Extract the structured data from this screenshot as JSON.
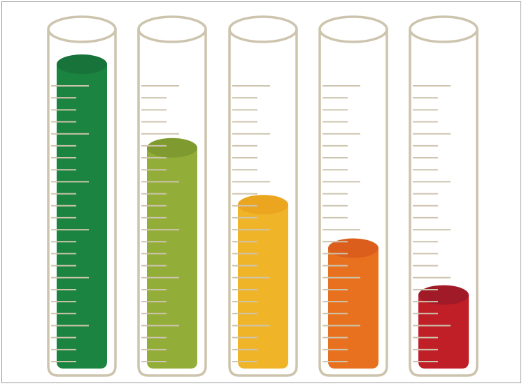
{
  "illustration": {
    "tube_color": "#cdc4ae",
    "tick_color": "#cdc4ae",
    "tubes": [
      {
        "name": "green",
        "fill_level": 0.91,
        "color": "#1a8440",
        "top_color": "#17733a"
      },
      {
        "name": "olive",
        "fill_level": 0.66,
        "color": "#92ad38",
        "top_color": "#7f9a2f"
      },
      {
        "name": "yellow",
        "fill_level": 0.49,
        "color": "#f0b428",
        "top_color": "#eba51f"
      },
      {
        "name": "orange",
        "fill_level": 0.36,
        "color": "#e8711f",
        "top_color": "#db5e1d"
      },
      {
        "name": "red",
        "fill_level": 0.22,
        "color": "#c11f28",
        "top_color": "#a11a28"
      }
    ]
  }
}
